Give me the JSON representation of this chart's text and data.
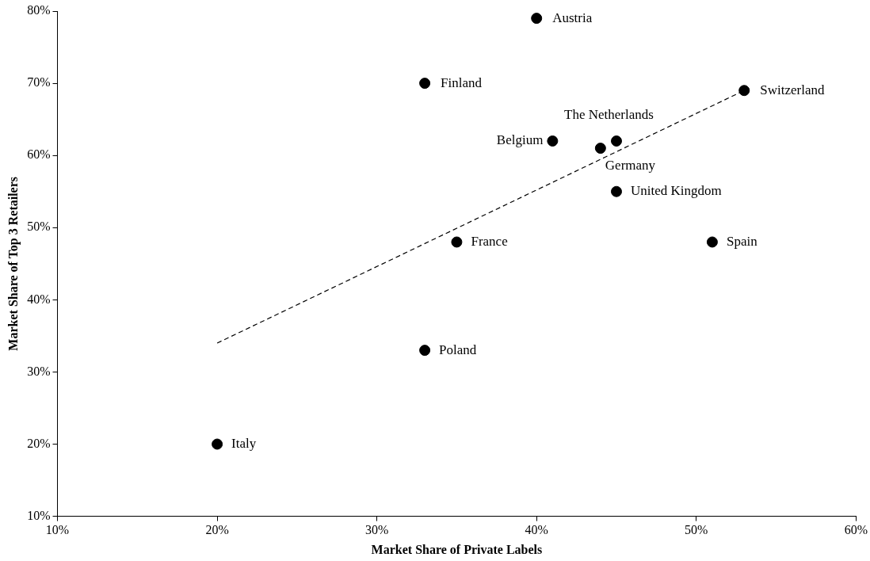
{
  "chart_data": {
    "type": "scatter",
    "xlabel": "Market Share of Private Labels",
    "ylabel": "Market Share of Top 3 Retailers",
    "x": [
      40,
      33,
      53,
      41,
      45,
      44,
      45,
      35,
      51,
      33,
      20
    ],
    "series": [
      {
        "color": "#000000",
        "marker": "circle",
        "values": [
          79,
          70,
          69,
          62,
          62,
          61,
          55,
          48,
          48,
          33,
          20
        ]
      },
      {
        "type": "line",
        "color": "#000000",
        "marker": "none",
        "line_style": "dashed",
        "x": [
          20,
          53
        ],
        "values": [
          34,
          69
        ]
      }
    ],
    "annotations": [
      {
        "text": "Austria",
        "x": 40,
        "y": 79
      },
      {
        "text": "Finland",
        "x": 33,
        "y": 70
      },
      {
        "text": "Switzerland",
        "x": 53,
        "y": 69
      },
      {
        "text": "Belgium",
        "x": 41,
        "y": 62
      },
      {
        "text": "The Netherlands",
        "x": 45,
        "y": 62
      },
      {
        "text": "Germany",
        "x": 44,
        "y": 61
      },
      {
        "text": "United Kingdom",
        "x": 45,
        "y": 55
      },
      {
        "text": "France",
        "x": 35,
        "y": 48
      },
      {
        "text": "Spain",
        "x": 51,
        "y": 48
      },
      {
        "text": "Poland",
        "x": 33,
        "y": 33
      },
      {
        "text": "Italy",
        "x": 20,
        "y": 20
      }
    ],
    "xlim": [
      10,
      60
    ],
    "xticks": [
      {
        "value": 10,
        "label": "10%"
      },
      {
        "value": 20,
        "label": "20%"
      },
      {
        "value": 30,
        "label": "30%"
      },
      {
        "value": 40,
        "label": "40%"
      },
      {
        "value": 50,
        "label": "50%"
      },
      {
        "value": 60,
        "label": "60%"
      }
    ],
    "ylim": [
      10,
      80
    ],
    "yticks": [
      {
        "value": 10,
        "label": "10%"
      },
      {
        "value": 20,
        "label": "20%"
      },
      {
        "value": 30,
        "label": "30%"
      },
      {
        "value": 40,
        "label": "40%"
      },
      {
        "value": 50,
        "label": "50%"
      },
      {
        "value": 60,
        "label": "60%"
      },
      {
        "value": 70,
        "label": "70%"
      },
      {
        "value": 80,
        "label": "80%"
      }
    ],
    "grid": false,
    "legend": false
  }
}
